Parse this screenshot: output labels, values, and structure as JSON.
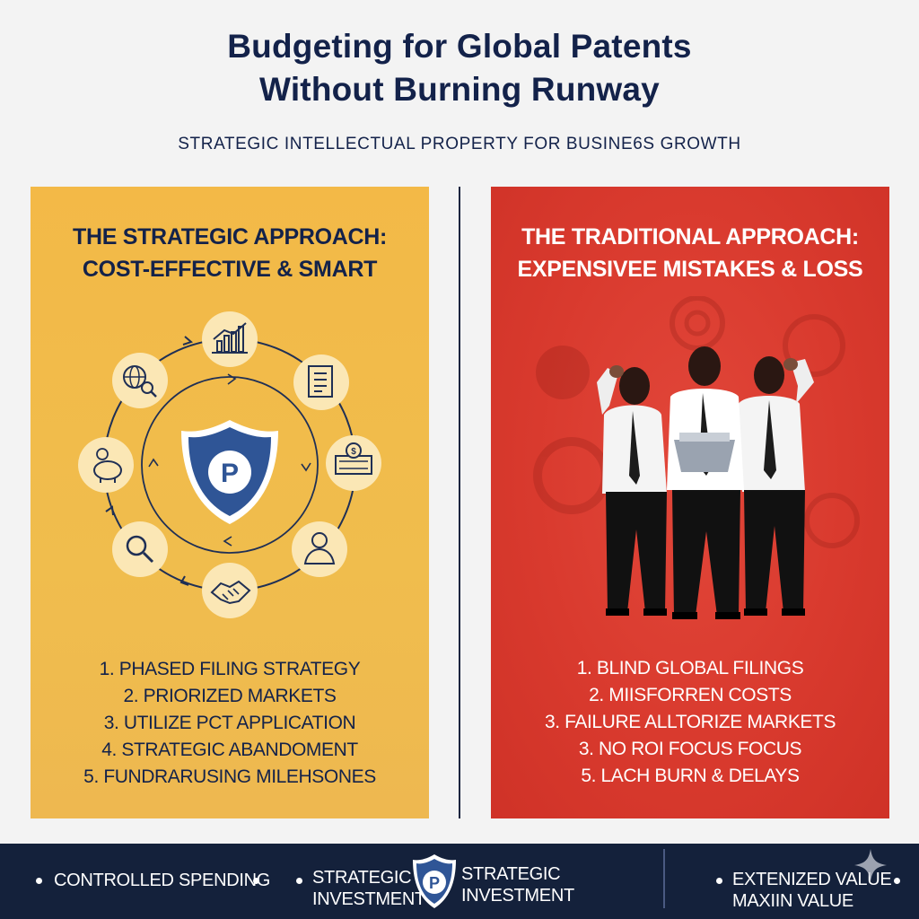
{
  "header": {
    "title_line1": "Budgeting for Global Patents",
    "title_line2": "Without Burning Runway",
    "subtitle": "STRATEGIC INTELLECTUAL PROPERTY FOR BUSINE6S GROWTH"
  },
  "left_panel": {
    "heading_line1": "THE STRATEGIC APPROACH:",
    "heading_line2": "COST-EFFECTIVE & SMART",
    "shield_letter": "P",
    "cycle_icons": [
      "growth-chart-icon",
      "document-icon",
      "money-icon",
      "user-icon",
      "handshake-icon",
      "magnifier-icon",
      "piggy-bank-icon",
      "globe-search-icon"
    ],
    "items": [
      "1. PHASED FILING STRATEGY",
      "2. PRIORIZED MARKETS",
      "3. UTILIZE PCT APPLICATION",
      "4. STRATEGIC ABANDOMENT",
      "5. FUNDRARUSING MILEHSONES"
    ],
    "colors": {
      "background": "#f1bb4b",
      "text": "#13224a",
      "icon_circle": "#fbe7b5",
      "shield": "#2f5596"
    }
  },
  "right_panel": {
    "heading_line1": "THE TRADITIONAL APPROACH:",
    "heading_line2": "EXPENSIVEE MISTAKES & LOSS",
    "items": [
      "1. BLIND GLOBAL FILINGS",
      "2. MIISFORREN COSTS",
      "3. FAILURE ALLTORIZE MARKETS",
      "3. NO ROI FOCUS FOCUS",
      "5. LACH BURN & DELAYS"
    ],
    "colors": {
      "background": "#d93a2e",
      "text": "#ffffff"
    }
  },
  "footer": {
    "item1": "CONTROLLED SPENDING",
    "item2_line1": "STRATEGIC",
    "item2_line2": "INVESTMENT",
    "logo_letter": "P",
    "item3_line1": "STRATEGIC",
    "item3_line2": "INVESTMENT",
    "item4_line1": "EXTENIZED VALUE",
    "item4_line2": "MAXIIN VALUE",
    "colors": {
      "background": "#14213b",
      "text": "#ffffff"
    }
  }
}
